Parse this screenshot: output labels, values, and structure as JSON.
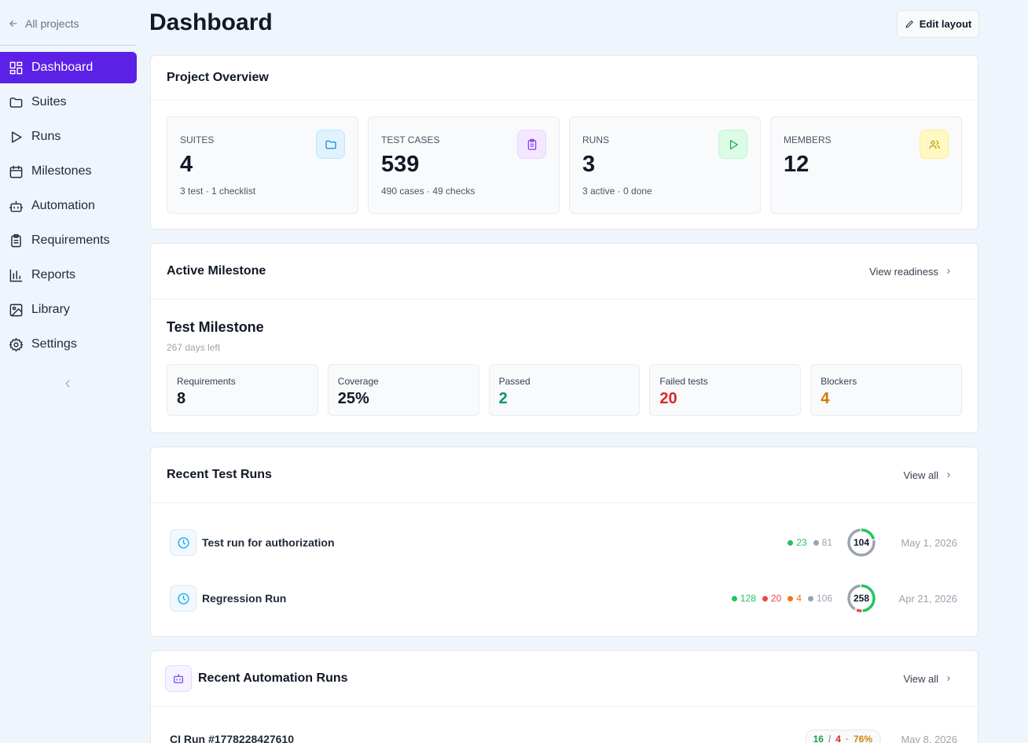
{
  "sidebar": {
    "back": "All projects",
    "nav": [
      "Dashboard",
      "Suites",
      "Runs",
      "Milestones",
      "Automation",
      "Requirements",
      "Reports",
      "Library",
      "Settings"
    ]
  },
  "header": {
    "title": "Dashboard",
    "edit_button": "Edit layout"
  },
  "overview": {
    "title": "Project Overview",
    "stats": [
      {
        "label": "SUITES",
        "value": 4,
        "detail": "3 test · 1 checklist"
      },
      {
        "label": "TEST CASES",
        "value": 539,
        "detail": "490 cases · 49 checks"
      },
      {
        "label": "RUNS",
        "value": 3,
        "detail": "3 active · 0 done"
      },
      {
        "label": "MEMBERS",
        "value": 12
      }
    ]
  },
  "milestone": {
    "section_title": "Active Milestone",
    "link": "View readiness",
    "name": "Test Milestone",
    "days_left": "267 days left",
    "metrics": [
      {
        "label": "Requirements",
        "value": 8,
        "color": "#111827"
      },
      {
        "label": "Coverage",
        "value": "25%",
        "color": "#111827"
      },
      {
        "label": "Passed",
        "value": 2,
        "color": "#059669"
      },
      {
        "label": "Failed tests",
        "value": 20,
        "color": "#dc2626"
      },
      {
        "label": "Blockers",
        "value": 4,
        "color": "#d97706"
      }
    ]
  },
  "recent_runs": {
    "title": "Recent Test Runs",
    "link": "View all",
    "runs": [
      {
        "name": "Test run for authorization",
        "counts": [
          {
            "value": 23,
            "color": "#22c55e"
          },
          {
            "value": 81,
            "color": "#9ca3af"
          }
        ],
        "total": 104,
        "date": "May 1, 2026"
      },
      {
        "name": "Regression Run",
        "counts": [
          {
            "value": 128,
            "color": "#22c55e"
          },
          {
            "value": 20,
            "color": "#ef4444"
          },
          {
            "value": 4,
            "color": "#f97316"
          },
          {
            "value": 106,
            "color": "#9ca3af"
          }
        ],
        "total": 258,
        "date": "Apr 21, 2026"
      }
    ]
  },
  "automation": {
    "title": "Recent Automation Runs",
    "link": "View all",
    "runs": [
      {
        "name": "CI Run #1778228427610",
        "result": [
          {
            "text": 16,
            "color": "#16a34a"
          },
          {
            "text": "/",
            "color": "#9ca3af"
          },
          {
            "text": 4,
            "color": "#dc2626"
          },
          {
            "text": "·",
            "color": "#9ca3af"
          },
          {
            "text": "76%",
            "color": "#ca8a04"
          }
        ],
        "date": "May 8, 2026"
      }
    ]
  }
}
